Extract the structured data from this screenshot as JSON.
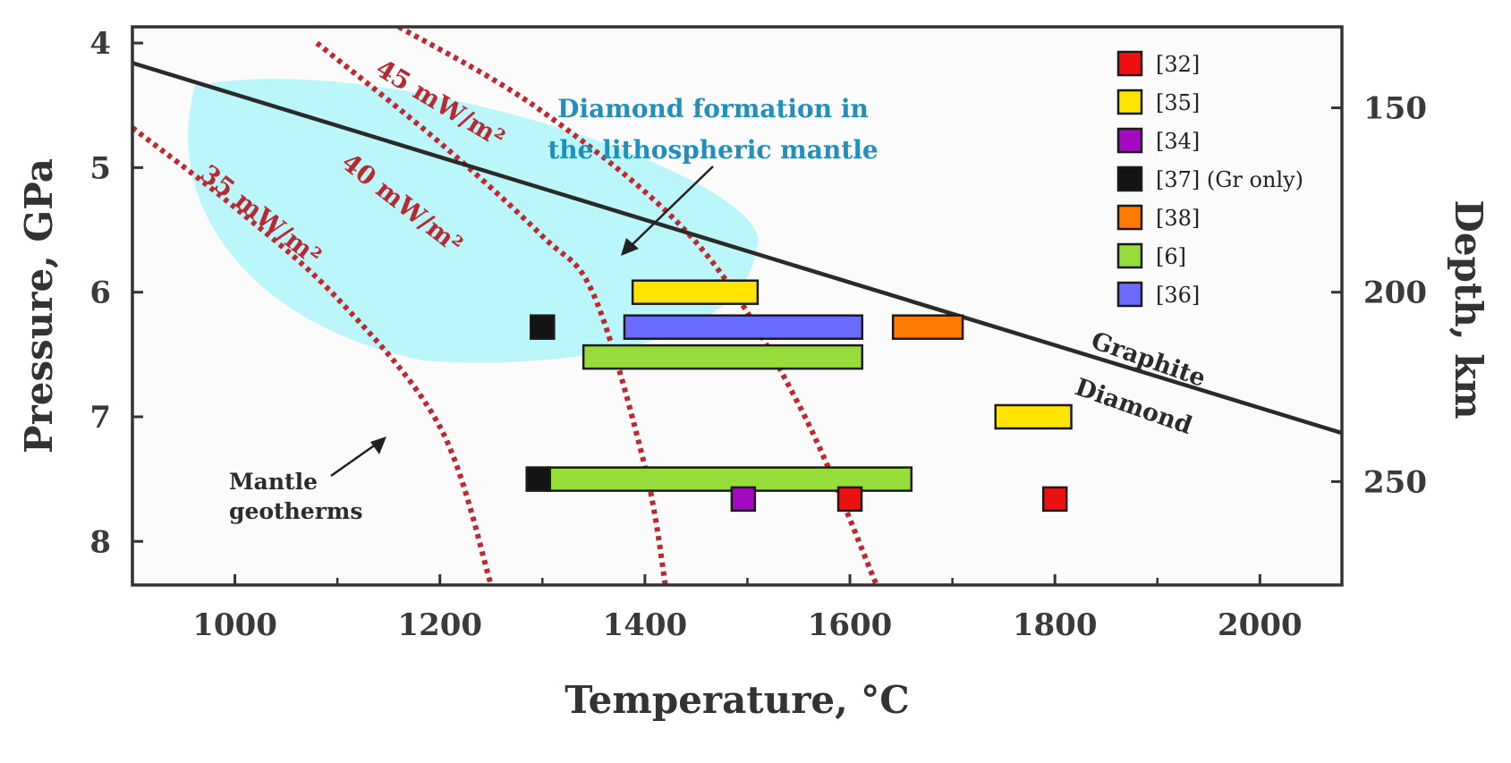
{
  "chart_data": {
    "type": "scatter",
    "title": "",
    "xlabel": "Temperature, °C",
    "ylabel": "Pressure, GPa",
    "y2label": "Depth, km",
    "xlim": [
      900,
      2080
    ],
    "ylim": [
      3.87,
      8.35
    ],
    "x_ticks": [
      1000,
      1200,
      1400,
      1600,
      1800,
      2000
    ],
    "y_ticks": [
      4,
      5,
      6,
      7,
      8
    ],
    "y2_ticks": [
      150,
      200,
      250
    ],
    "y2_tick_pressures": [
      4.52,
      6.0,
      7.52
    ],
    "grid": false,
    "legend_position": "top-right",
    "legend": [
      {
        "label": "[32]",
        "color": "#ee1111"
      },
      {
        "label": "[35]",
        "color": "#ffe400"
      },
      {
        "label": "[34]",
        "color": "#a30ac2"
      },
      {
        "label": "[37] (Gr only)",
        "color": "#141414"
      },
      {
        "label": "[38]",
        "color": "#ff7a00"
      },
      {
        "label": "[6]",
        "color": "#97dd3a"
      },
      {
        "label": "[36]",
        "color": "#6b6bff"
      }
    ],
    "ranges": [
      {
        "source": "[35]",
        "color": "#ffe400",
        "t_min": 1388,
        "t_max": 1510,
        "pressure": 6.0
      },
      {
        "source": "[36]",
        "color": "#6b6bff",
        "t_min": 1380,
        "t_max": 1612,
        "pressure": 6.28
      },
      {
        "source": "[38]",
        "color": "#ff7a00",
        "t_min": 1642,
        "t_max": 1710,
        "pressure": 6.28
      },
      {
        "source": "[6]",
        "color": "#97dd3a",
        "t_min": 1340,
        "t_max": 1612,
        "pressure": 6.52
      },
      {
        "source": "[35]",
        "color": "#ffe400",
        "t_min": 1742,
        "t_max": 1816,
        "pressure": 7.0
      },
      {
        "source": "[6]",
        "color": "#97dd3a",
        "t_min": 1305,
        "t_max": 1660,
        "pressure": 7.5
      }
    ],
    "points": [
      {
        "source": "[37] (Gr only)",
        "color": "#141414",
        "t": 1300,
        "pressure": 6.28
      },
      {
        "source": "[37] (Gr only)",
        "color": "#141414",
        "t": 1296,
        "pressure": 7.5
      },
      {
        "source": "[34]",
        "color": "#a30ac2",
        "t": 1496,
        "pressure": 7.66
      },
      {
        "source": "[32]",
        "color": "#ee1111",
        "t": 1600,
        "pressure": 7.66
      },
      {
        "source": "[32]",
        "color": "#ee1111",
        "t": 1800,
        "pressure": 7.66
      }
    ],
    "graphite_diamond_boundary": [
      {
        "t": 900,
        "pressure": 4.16
      },
      {
        "t": 2080,
        "pressure": 7.13
      }
    ],
    "boundary_labels": {
      "upper": "Graphite",
      "lower": "Diamond"
    },
    "geotherms": [
      {
        "label": "35 mW/m²",
        "points": [
          [
            900,
            4.68
          ],
          [
            1000,
            5.32
          ],
          [
            1100,
            6.05
          ],
          [
            1200,
            7.08
          ],
          [
            1250,
            8.35
          ]
        ]
      },
      {
        "label": "40 mW/m²",
        "points": [
          [
            1080,
            4.0
          ],
          [
            1200,
            4.8
          ],
          [
            1300,
            5.55
          ],
          [
            1350,
            6.02
          ],
          [
            1400,
            7.4
          ],
          [
            1420,
            8.35
          ]
        ]
      },
      {
        "label": "45 mW/m²",
        "points": [
          [
            1160,
            3.87
          ],
          [
            1300,
            4.55
          ],
          [
            1450,
            5.6
          ],
          [
            1550,
            6.9
          ],
          [
            1626,
            8.35
          ]
        ]
      }
    ],
    "region": {
      "label_line1": "Diamond formation in",
      "label_line2": "the lithospheric mantle",
      "t_range": [
        950,
        1510
      ],
      "pressure_range": [
        4.3,
        6.55
      ]
    },
    "annotations": {
      "geotherm_note_line1": "Mantle",
      "geotherm_note_line2": "geotherms"
    }
  }
}
